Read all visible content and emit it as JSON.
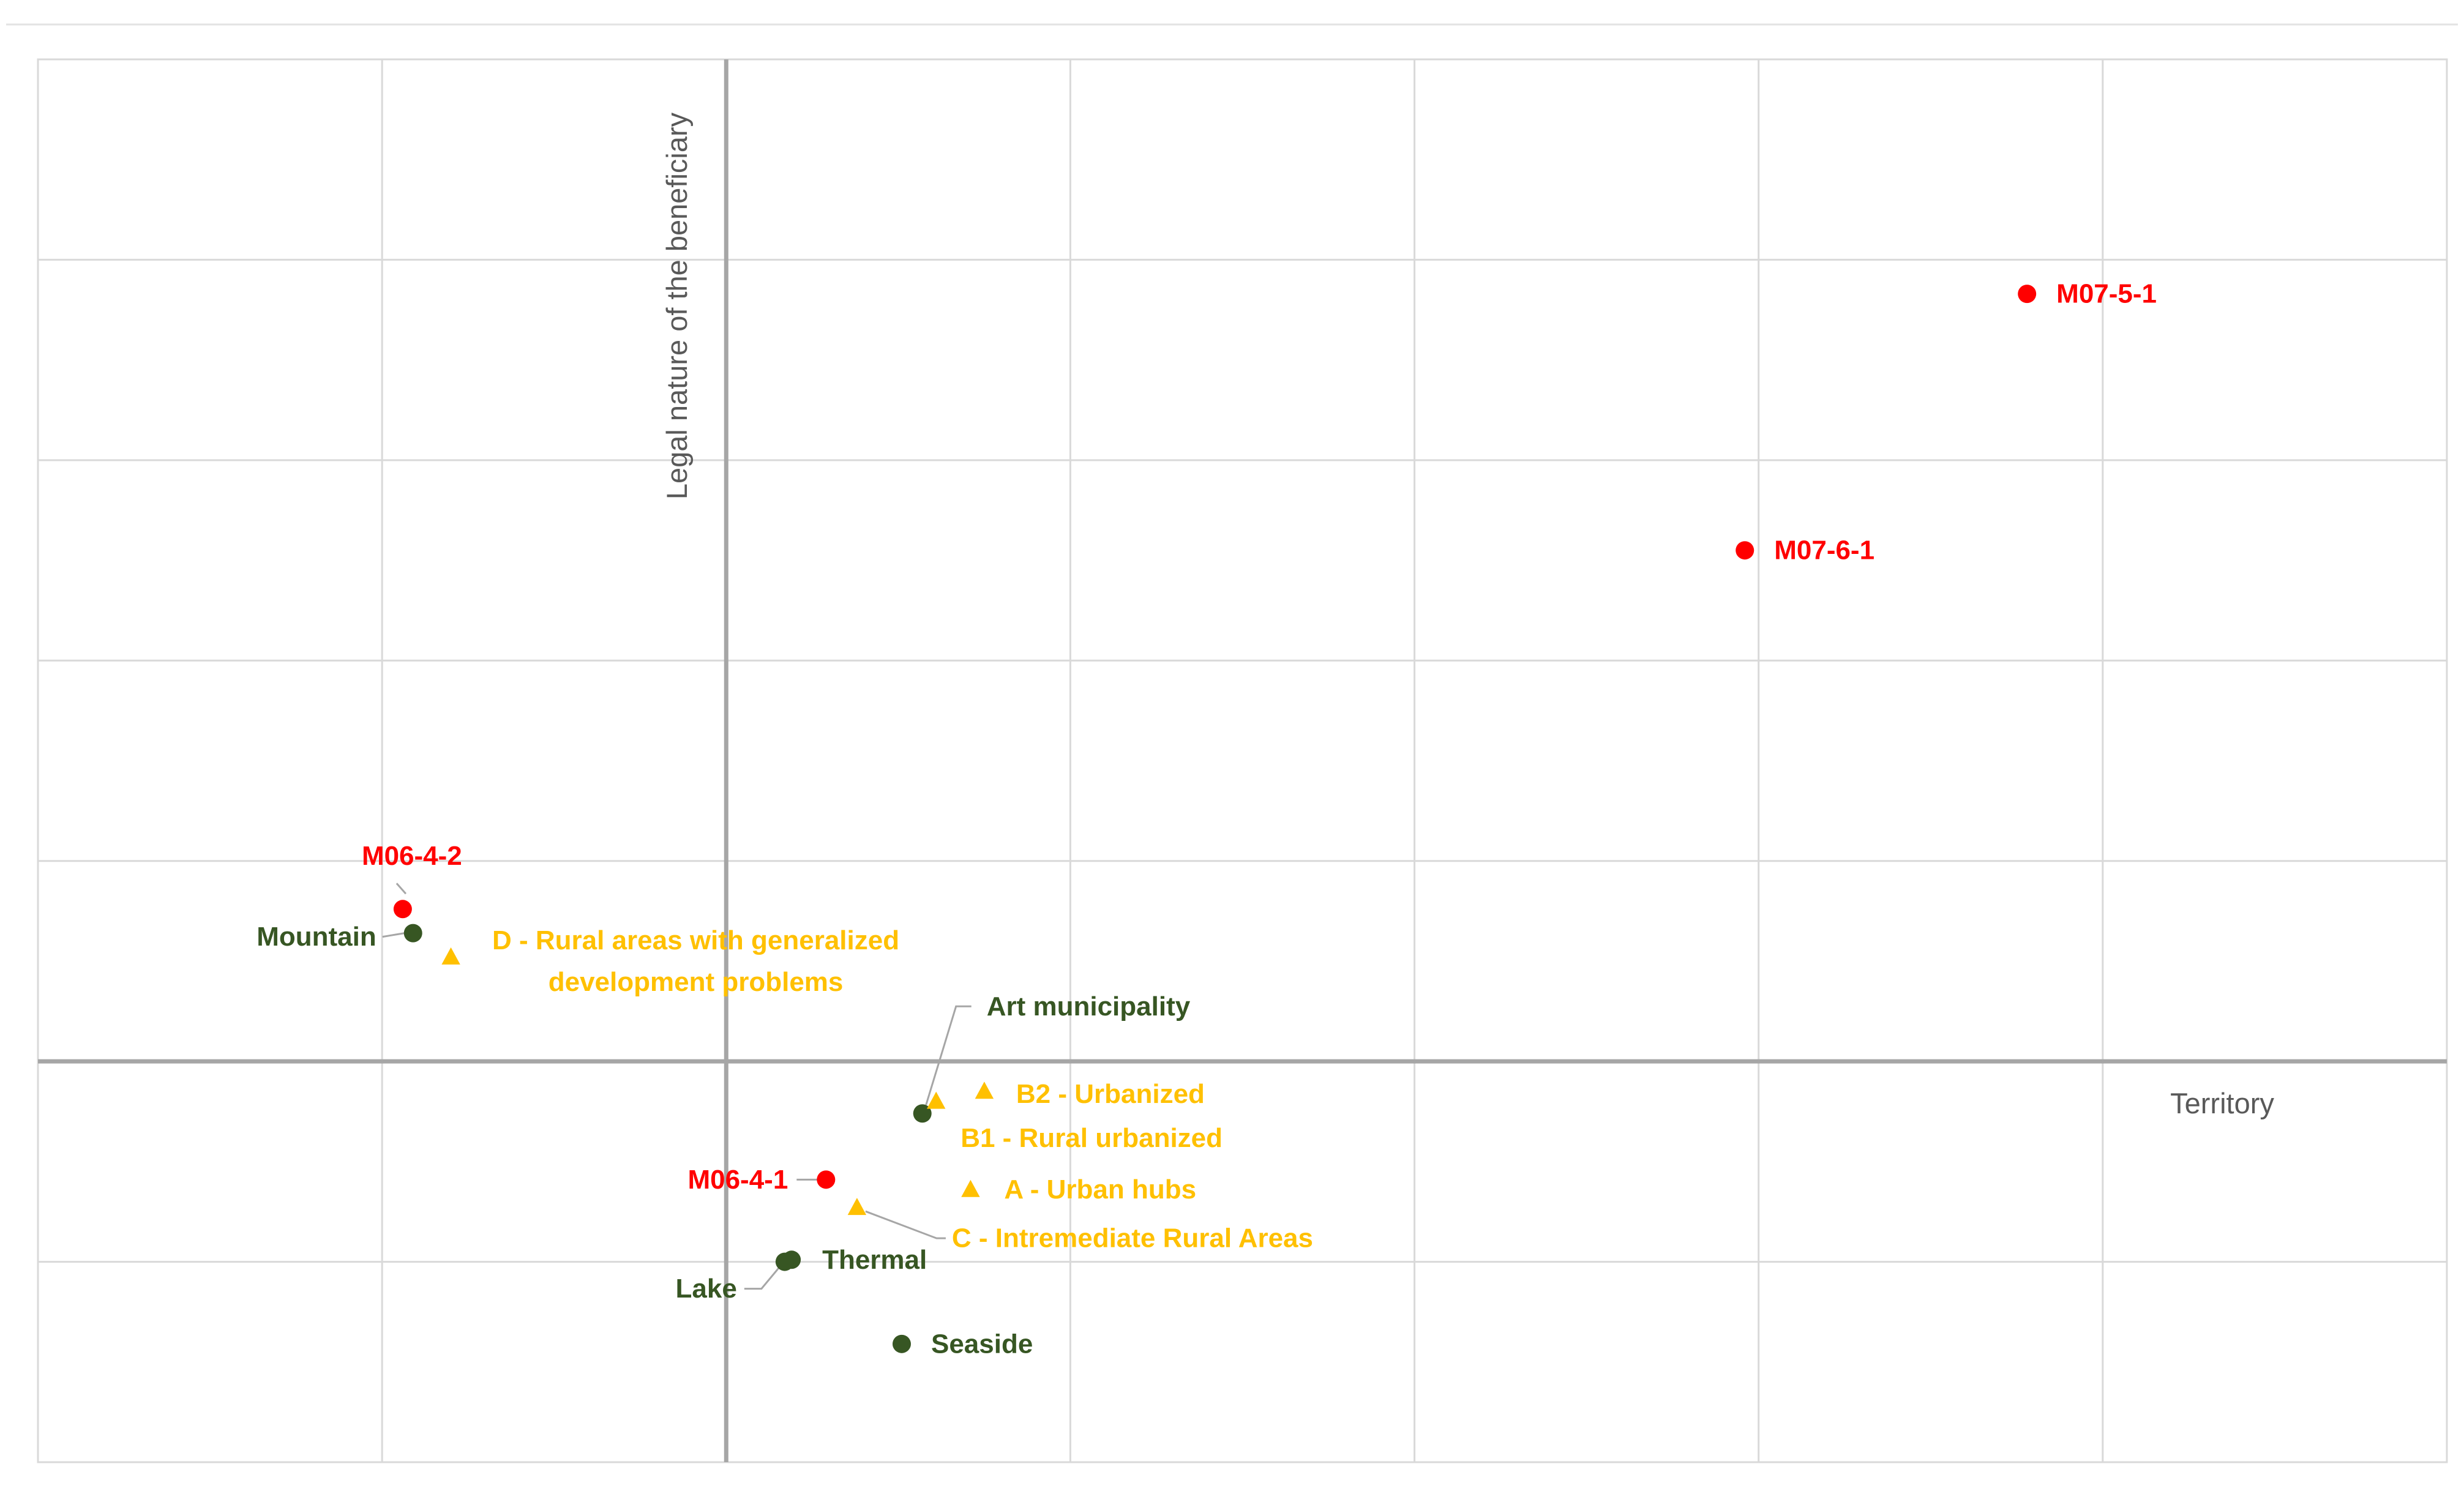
{
  "chart_data": {
    "type": "scatter",
    "xlabel": "Territory",
    "ylabel": "Legal nature of the beneficiary",
    "xlim": [
      -2.0,
      5.0
    ],
    "ylim": [
      -2.0,
      5.0
    ],
    "grid": true,
    "colors": {
      "measures": "#ff0000",
      "territory": "#375623",
      "areas": "#ffc000",
      "grid": "#d9d9d9",
      "axis": "#a6a6a6",
      "axis_text": "#595959",
      "leader": "#a6a6a6"
    },
    "series": [
      {
        "marker": "circle",
        "color": "#ff0000",
        "points": [
          {
            "label": "M07-5-1",
            "x": 3.78,
            "y": 3.83
          },
          {
            "label": "M07-6-1",
            "x": 2.96,
            "y": 2.55
          },
          {
            "label": "M06-4-2",
            "x": -0.94,
            "y": 0.76
          },
          {
            "label": "M06-4-1",
            "x": 0.29,
            "y": -0.59
          }
        ]
      },
      {
        "marker": "circle",
        "color": "#375623",
        "points": [
          {
            "label": "Mountain",
            "x": -0.91,
            "y": 0.64
          },
          {
            "label": "Art municipality",
            "x": 0.57,
            "y": -0.26
          },
          {
            "label": "Thermal",
            "x": 0.19,
            "y": -0.99
          },
          {
            "label": "Lake",
            "x": 0.17,
            "y": -1.0
          },
          {
            "label": "Seaside",
            "x": 0.51,
            "y": -1.41
          }
        ]
      },
      {
        "marker": "triangle",
        "color": "#ffc000",
        "points": [
          {
            "label": "D - Rural areas with generalized development problems",
            "label_lines": [
              "D - Rural areas with generalized",
              "development problems"
            ],
            "x": -0.8,
            "y": 0.52
          },
          {
            "label": "B2 - Urbanized",
            "x": 0.75,
            "y": -0.15
          },
          {
            "label": "B1 - Rural urbanized",
            "x": 0.61,
            "y": -0.2
          },
          {
            "label": "A - Urban hubs",
            "x": 0.71,
            "y": -0.64
          },
          {
            "label": "C - Intremediate  Rural Areas",
            "x": 0.38,
            "y": -0.73
          }
        ]
      }
    ]
  }
}
